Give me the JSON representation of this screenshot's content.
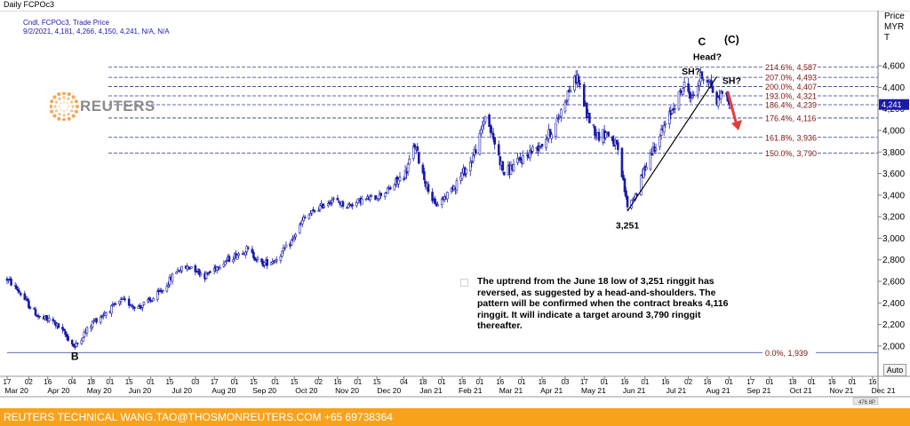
{
  "window": {
    "title": "Daily FCPOc3"
  },
  "info": {
    "line1": "Cndl, FCPOc3, Trade Price",
    "line2": "9/2/2021, 4,181, 4,266, 4,150, 4,241, N/A, N/A"
  },
  "logo": {
    "text": "REUTERS",
    "icon": "reuters-dot-logo"
  },
  "yaxis_header": {
    "line1": "Price",
    "line2": "MYR",
    "line3": "T"
  },
  "current_price_tag": "4,241",
  "auto_button": "Auto",
  "footer": {
    "text": "REUTERS TECHNICAL  WANG.TAO@THOSMONREUTERS.COM  +65 69738364"
  },
  "note": "The uptrend from the June 18 low of 3,251 ringgit has reversed, as suggested by a  head-and-shoulders.  The pattern will be confirmed when the contract breaks 4,116 ringgit. It will indicate a target around 3,790 ringgit thereafter.",
  "colors": {
    "up": "#1a1aa8",
    "down": "#1a1aa8",
    "fib_line": "#2a3a8c",
    "fib_label": "#7a1010",
    "footer_bg": "#f7a21b",
    "arrow": "#e53b3b"
  },
  "chart_data": {
    "type": "candlestick",
    "ylim": [
      1900,
      4700
    ],
    "yticks": [
      2000,
      2200,
      2400,
      2600,
      2800,
      3000,
      3200,
      3400,
      3600,
      3800,
      4000,
      4200,
      4400,
      4600
    ],
    "ytick_labels": [
      "2,000",
      "2,200",
      "2,400",
      "2,600",
      "2,800",
      "3,000",
      "3,200",
      "3,400",
      "3,600",
      "3,800",
      "4,000",
      "4,200",
      "4,400",
      "4,600"
    ],
    "x_start": "2020-03-17",
    "x_end": "2021-12-20",
    "day_ticks": [
      {
        "d": "2020-03-17",
        "l": "17"
      },
      {
        "d": "2020-04-02",
        "l": "02"
      },
      {
        "d": "2020-04-16",
        "l": "16"
      },
      {
        "d": "2020-05-04",
        "l": "04"
      },
      {
        "d": "2020-05-18",
        "l": "18"
      },
      {
        "d": "2020-06-01",
        "l": "01"
      },
      {
        "d": "2020-06-15",
        "l": "15"
      },
      {
        "d": "2020-07-01",
        "l": "01"
      },
      {
        "d": "2020-07-15",
        "l": "15"
      },
      {
        "d": "2020-08-03",
        "l": "03"
      },
      {
        "d": "2020-08-17",
        "l": "17"
      },
      {
        "d": "2020-09-01",
        "l": "01"
      },
      {
        "d": "2020-09-15",
        "l": "15"
      },
      {
        "d": "2020-10-01",
        "l": "01"
      },
      {
        "d": "2020-10-15",
        "l": "15"
      },
      {
        "d": "2020-11-02",
        "l": "02"
      },
      {
        "d": "2020-11-16",
        "l": "16"
      },
      {
        "d": "2020-12-01",
        "l": "01"
      },
      {
        "d": "2020-12-15",
        "l": "15"
      },
      {
        "d": "2021-01-04",
        "l": "04"
      },
      {
        "d": "2021-01-18",
        "l": "18"
      },
      {
        "d": "2021-02-01",
        "l": "01"
      },
      {
        "d": "2021-02-16",
        "l": "16"
      },
      {
        "d": "2021-03-01",
        "l": "01"
      },
      {
        "d": "2021-03-16",
        "l": "16"
      },
      {
        "d": "2021-04-01",
        "l": "01"
      },
      {
        "d": "2021-04-16",
        "l": "16"
      },
      {
        "d": "2021-05-03",
        "l": "03"
      },
      {
        "d": "2021-05-17",
        "l": "17"
      },
      {
        "d": "2021-06-01",
        "l": "01"
      },
      {
        "d": "2021-06-16",
        "l": "16"
      },
      {
        "d": "2021-07-01",
        "l": "01"
      },
      {
        "d": "2021-07-16",
        "l": "16"
      },
      {
        "d": "2021-08-02",
        "l": "02"
      },
      {
        "d": "2021-08-16",
        "l": "16"
      },
      {
        "d": "2021-09-01",
        "l": "01"
      },
      {
        "d": "2021-09-17",
        "l": "17"
      },
      {
        "d": "2021-10-01",
        "l": "01"
      },
      {
        "d": "2021-10-18",
        "l": "18"
      },
      {
        "d": "2021-11-01",
        "l": "01"
      },
      {
        "d": "2021-11-16",
        "l": "16"
      },
      {
        "d": "2021-12-01",
        "l": "01"
      },
      {
        "d": "2021-12-16",
        "l": "16"
      }
    ],
    "month_labels": [
      {
        "d": "2020-03-24",
        "l": "Mar 20"
      },
      {
        "d": "2020-04-24",
        "l": "Apr 20"
      },
      {
        "d": "2020-05-24",
        "l": "May 20"
      },
      {
        "d": "2020-06-23",
        "l": "Jun 20"
      },
      {
        "d": "2020-07-24",
        "l": "Jul 20"
      },
      {
        "d": "2020-08-24",
        "l": "Aug 20"
      },
      {
        "d": "2020-09-23",
        "l": "Sep 20"
      },
      {
        "d": "2020-10-24",
        "l": "Oct 20"
      },
      {
        "d": "2020-11-23",
        "l": "Nov 20"
      },
      {
        "d": "2020-12-24",
        "l": "Dec 20"
      },
      {
        "d": "2021-01-24",
        "l": "Jan 21"
      },
      {
        "d": "2021-02-22",
        "l": "Feb 21"
      },
      {
        "d": "2021-03-24",
        "l": "Mar 21"
      },
      {
        "d": "2021-04-23",
        "l": "Apr 21"
      },
      {
        "d": "2021-05-24",
        "l": "May 21"
      },
      {
        "d": "2021-06-23",
        "l": "Jun 21"
      },
      {
        "d": "2021-07-24",
        "l": "Jul 21"
      },
      {
        "d": "2021-08-24",
        "l": "Aug 21"
      },
      {
        "d": "2021-09-23",
        "l": "Sep 21"
      },
      {
        "d": "2021-10-24",
        "l": "Oct 21"
      },
      {
        "d": "2021-11-23",
        "l": "Nov 21"
      },
      {
        "d": "2021-12-24",
        "l": "Dec 21"
      }
    ],
    "price_path": [
      {
        "d": "2020-03-17",
        "p": 2620
      },
      {
        "d": "2020-03-25",
        "p": 2520
      },
      {
        "d": "2020-04-02",
        "p": 2380
      },
      {
        "d": "2020-04-10",
        "p": 2260
      },
      {
        "d": "2020-04-20",
        "p": 2230
      },
      {
        "d": "2020-04-28",
        "p": 2120
      },
      {
        "d": "2020-05-06",
        "p": 1990
      },
      {
        "d": "2020-05-12",
        "p": 2100
      },
      {
        "d": "2020-05-20",
        "p": 2230
      },
      {
        "d": "2020-06-01",
        "p": 2340
      },
      {
        "d": "2020-06-10",
        "p": 2420
      },
      {
        "d": "2020-06-22",
        "p": 2360
      },
      {
        "d": "2020-07-02",
        "p": 2430
      },
      {
        "d": "2020-07-10",
        "p": 2520
      },
      {
        "d": "2020-07-20",
        "p": 2700
      },
      {
        "d": "2020-07-31",
        "p": 2740
      },
      {
        "d": "2020-08-10",
        "p": 2650
      },
      {
        "d": "2020-08-20",
        "p": 2750
      },
      {
        "d": "2020-08-31",
        "p": 2830
      },
      {
        "d": "2020-09-10",
        "p": 2900
      },
      {
        "d": "2020-09-21",
        "p": 2760
      },
      {
        "d": "2020-10-01",
        "p": 2800
      },
      {
        "d": "2020-10-12",
        "p": 2950
      },
      {
        "d": "2020-10-22",
        "p": 3180
      },
      {
        "d": "2020-11-02",
        "p": 3280
      },
      {
        "d": "2020-11-12",
        "p": 3360
      },
      {
        "d": "2020-11-23",
        "p": 3300
      },
      {
        "d": "2020-12-03",
        "p": 3350
      },
      {
        "d": "2020-12-14",
        "p": 3380
      },
      {
        "d": "2020-12-24",
        "p": 3450
      },
      {
        "d": "2021-01-05",
        "p": 3600
      },
      {
        "d": "2021-01-12",
        "p": 3860
      },
      {
        "d": "2021-01-20",
        "p": 3520
      },
      {
        "d": "2021-01-27",
        "p": 3300
      },
      {
        "d": "2021-02-03",
        "p": 3380
      },
      {
        "d": "2021-02-12",
        "p": 3520
      },
      {
        "d": "2021-02-22",
        "p": 3700
      },
      {
        "d": "2021-03-01",
        "p": 3930
      },
      {
        "d": "2021-03-05",
        "p": 4150
      },
      {
        "d": "2021-03-12",
        "p": 3880
      },
      {
        "d": "2021-03-19",
        "p": 3600
      },
      {
        "d": "2021-03-29",
        "p": 3700
      },
      {
        "d": "2021-04-07",
        "p": 3800
      },
      {
        "d": "2021-04-16",
        "p": 3880
      },
      {
        "d": "2021-04-26",
        "p": 4050
      },
      {
        "d": "2021-05-05",
        "p": 4350
      },
      {
        "d": "2021-05-12",
        "p": 4500
      },
      {
        "d": "2021-05-19",
        "p": 4150
      },
      {
        "d": "2021-05-27",
        "p": 3950
      },
      {
        "d": "2021-06-03",
        "p": 3980
      },
      {
        "d": "2021-06-10",
        "p": 3850
      },
      {
        "d": "2021-06-18",
        "p": 3300
      },
      {
        "d": "2021-06-25",
        "p": 3420
      },
      {
        "d": "2021-07-02",
        "p": 3700
      },
      {
        "d": "2021-07-09",
        "p": 3880
      },
      {
        "d": "2021-07-16",
        "p": 4050
      },
      {
        "d": "2021-07-23",
        "p": 4250
      },
      {
        "d": "2021-07-30",
        "p": 4420
      },
      {
        "d": "2021-08-05",
        "p": 4300
      },
      {
        "d": "2021-08-11",
        "p": 4500
      },
      {
        "d": "2021-08-17",
        "p": 4480
      },
      {
        "d": "2021-08-23",
        "p": 4250
      },
      {
        "d": "2021-08-27",
        "p": 4380
      },
      {
        "d": "2021-09-02",
        "p": 4241
      }
    ],
    "fib_levels": [
      {
        "label": "214.6%, 4,587",
        "value": 4587
      },
      {
        "label": "207.0%, 4,493",
        "value": 4493
      },
      {
        "label": "200.0%, 4,407",
        "value": 4407
      },
      {
        "label": "193.0%, 4,321",
        "value": 4321
      },
      {
        "label": "186.4%, 4,239",
        "value": 4239
      },
      {
        "label": "176.4%, 4,116",
        "value": 4116
      },
      {
        "label": "161.8%, 3,936",
        "value": 3936
      },
      {
        "label": "150.0%, 3,790",
        "value": 3790
      },
      {
        "label": "0.0%,   1,939",
        "value": 1939
      }
    ],
    "annotations": [
      {
        "text": "B",
        "d": "2020-05-06",
        "p": 1870,
        "big": true
      },
      {
        "text": "3,251",
        "d": "2021-06-18",
        "p": 3090,
        "big": false
      },
      {
        "text": "C",
        "d": "2021-08-12",
        "p": 4790,
        "big": true
      },
      {
        "text": "(C)",
        "d": "2021-09-03",
        "p": 4810,
        "big": true
      },
      {
        "text": "Head?",
        "d": "2021-08-16",
        "p": 4655,
        "big": false
      },
      {
        "text": "SH?",
        "d": "2021-08-04",
        "p": 4520,
        "big": false
      },
      {
        "text": "SH?",
        "d": "2021-09-03",
        "p": 4432,
        "big": false
      }
    ],
    "trendline": [
      {
        "d": "2021-06-18",
        "p": 3251
      },
      {
        "d": "2021-08-23",
        "p": 4500
      }
    ],
    "arrow": [
      {
        "d": "2021-08-31",
        "p": 4360
      },
      {
        "d": "2021-09-08",
        "p": 4000
      }
    ]
  }
}
